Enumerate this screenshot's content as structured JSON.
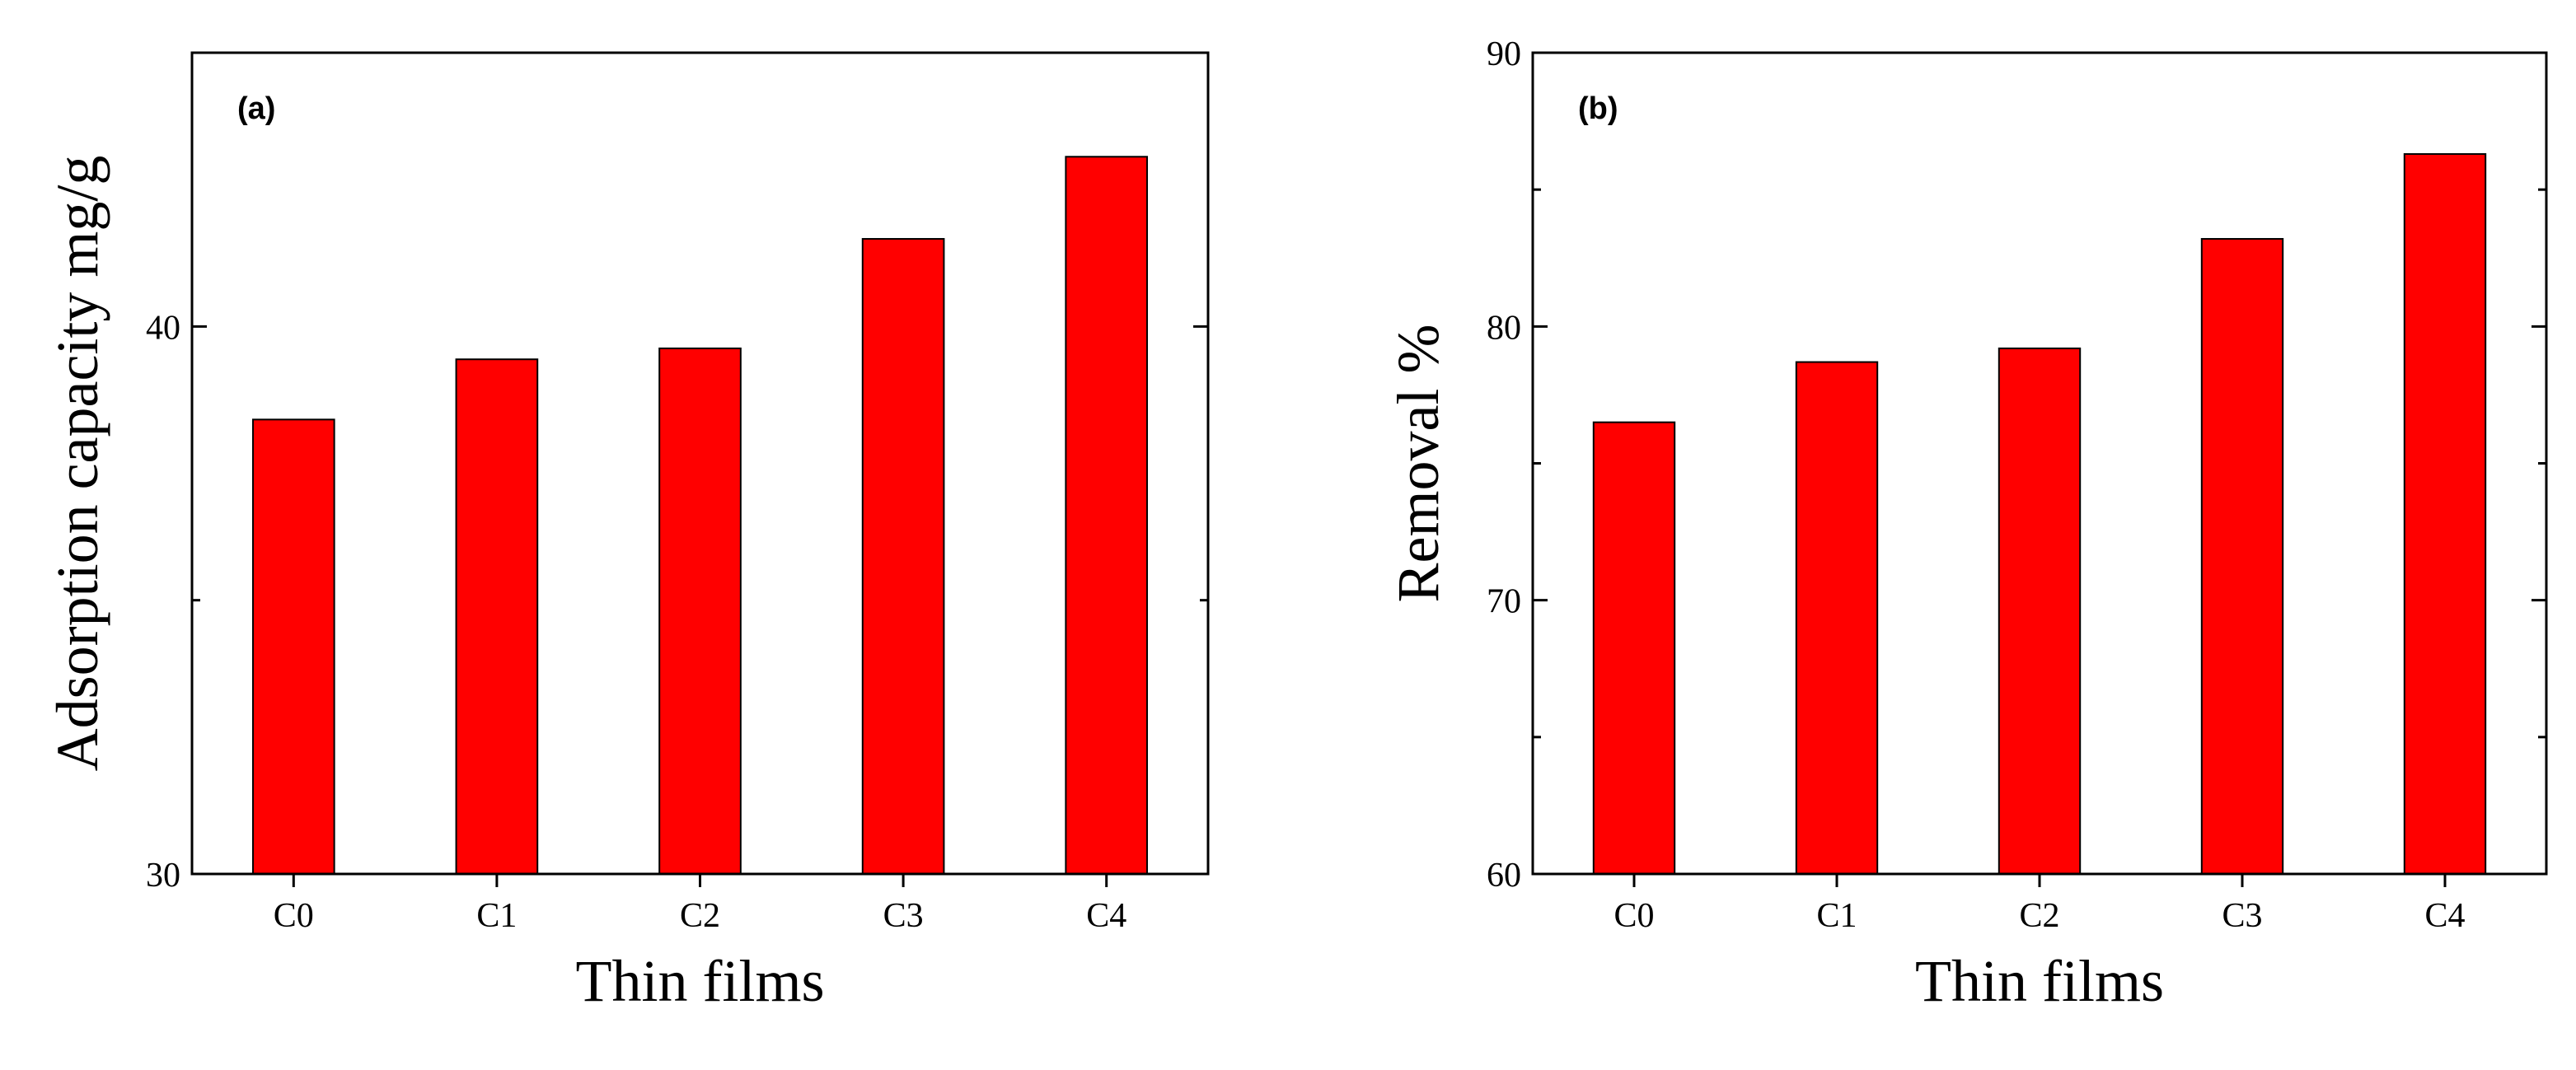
{
  "chart_data": [
    {
      "type": "bar",
      "panel_label": "(a)",
      "categories": [
        "C0",
        "C1",
        "C2",
        "C3",
        "C4"
      ],
      "values": [
        38.3,
        39.4,
        39.6,
        41.6,
        43.1
      ],
      "ylim": [
        30,
        45
      ],
      "yticks": [
        30,
        40
      ],
      "ytick_labels": [
        "30",
        "40"
      ],
      "xlabel": "Thin films",
      "ylabel": "Adsorption capacity mg/g",
      "bar_color": "#ff0000",
      "grid": false
    },
    {
      "type": "bar",
      "panel_label": "(b)",
      "categories": [
        "C0",
        "C1",
        "C2",
        "C3",
        "C4"
      ],
      "values": [
        76.5,
        78.7,
        79.2,
        83.2,
        86.3
      ],
      "ylim": [
        60,
        90
      ],
      "yticks": [
        60,
        70,
        80,
        90
      ],
      "ytick_labels": [
        "60",
        "70",
        "80",
        "90"
      ],
      "xlabel": "Thin films",
      "ylabel": "Removal %",
      "bar_color": "#ff0000",
      "grid": false
    }
  ]
}
